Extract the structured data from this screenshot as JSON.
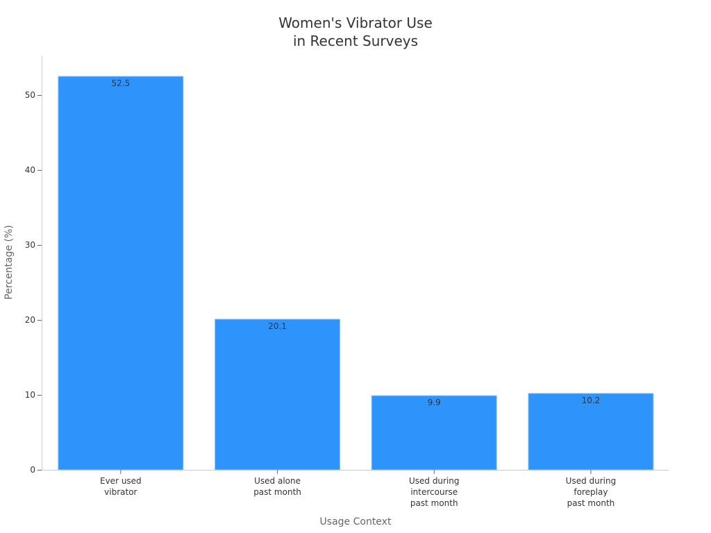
{
  "chart_data": {
    "type": "bar",
    "title": [
      "Women's Vibrator Use",
      "in Recent Surveys"
    ],
    "xlabel": "Usage Context",
    "ylabel": "Percentage (%)",
    "categories": [
      [
        "Ever used",
        "vibrator"
      ],
      [
        "Used alone",
        "past month"
      ],
      [
        "Used during",
        "intercourse",
        "past month"
      ],
      [
        "Used during",
        "foreplay",
        "past month"
      ]
    ],
    "values": [
      52.5,
      20.1,
      9.9,
      10.2
    ],
    "data_labels": [
      "52.5",
      "20.1",
      "9.9",
      "10.2"
    ],
    "yticks": [
      0,
      10,
      20,
      30,
      40,
      50
    ],
    "ylim": [
      0,
      55.3
    ],
    "grid": false,
    "legend": null,
    "colors": {
      "bar": "#2e93fa",
      "bar_edge": "#8ec5f5",
      "axis": "#cccccc",
      "text": "#333333",
      "label": "#666666"
    }
  }
}
